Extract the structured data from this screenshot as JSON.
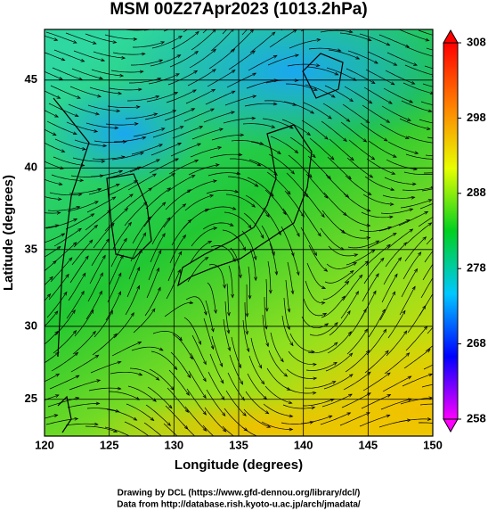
{
  "chart_data": {
    "type": "map",
    "title": "MSM 00Z27Apr2023 (1013.2hPa)",
    "x_label": "Longitude (degrees)",
    "y_label": "Latitude  (degrees)",
    "xlim": [
      120,
      150
    ],
    "xticks": [
      120,
      125,
      130,
      135,
      140,
      145,
      150
    ],
    "ylim": [
      22.4,
      47.7
    ],
    "yticks": [
      25,
      30,
      35,
      40,
      45
    ],
    "projection": "mercator",
    "grid": true,
    "colorbar": {
      "lim": [
        258,
        308
      ],
      "ticks": [
        258,
        268,
        278,
        288,
        298,
        308
      ],
      "colors": [
        "#ff00ff",
        "#0000ff",
        "#00c8ff",
        "#00d020",
        "#e8ff00",
        "#ff8000",
        "#ff0000"
      ]
    },
    "credits": [
      "Drawing by DCL (https://www.gfd-dennou.org/library/dcl/)",
      "Data from http://database.rish.kyoto-u.ac.jp/arch/jmadata/"
    ]
  }
}
